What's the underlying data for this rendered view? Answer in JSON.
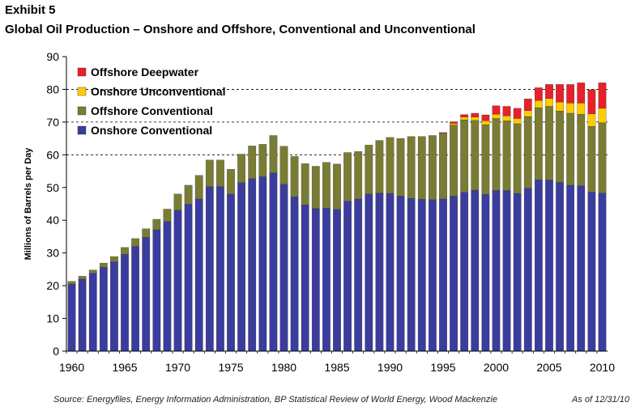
{
  "exhibit_label": "Exhibit 5",
  "title": "Global Oil Production – Onshore and Offshore, Conventional and Unconventional",
  "source": "Source:  Energyfiles, Energy Information Administration, BP Statistical Review of World Energy, Wood Mackenzie",
  "as_of": "As of 12/31/10",
  "colors": {
    "Onshore Conventional": "#3a3c9e",
    "Offshore Conventional": "#7a7c33",
    "Onshore Unconventional": "#ffcc00",
    "Offshore Deepwater": "#e8202a"
  },
  "chart_data": {
    "type": "bar",
    "stacked": true,
    "ylabel": "Millions of Barrels per Day",
    "xlabel": "",
    "ylim": [
      0,
      90
    ],
    "yticks": [
      0,
      10,
      20,
      30,
      40,
      50,
      60,
      70,
      80,
      90
    ],
    "xtick_labels": [
      "1960",
      "1965",
      "1970",
      "1975",
      "1980",
      "1985",
      "1990",
      "1995",
      "2000",
      "2005",
      "2010"
    ],
    "grid": "dashed horizontal at 60, 70, 80",
    "legend_position": "top-left",
    "legend_order": [
      "Offshore Deepwater",
      "Onshore Unconventional",
      "Offshore Conventional",
      "Onshore Conventional"
    ],
    "categories": [
      1960,
      1961,
      1962,
      1963,
      1964,
      1965,
      1966,
      1967,
      1968,
      1969,
      1970,
      1971,
      1972,
      1973,
      1974,
      1975,
      1976,
      1977,
      1978,
      1979,
      1980,
      1981,
      1982,
      1983,
      1984,
      1985,
      1986,
      1987,
      1988,
      1989,
      1990,
      1991,
      1992,
      1993,
      1994,
      1995,
      1996,
      1997,
      1998,
      1999,
      2000,
      2001,
      2002,
      2003,
      2004,
      2005,
      2006,
      2007,
      2008,
      2009,
      2010
    ],
    "series": [
      {
        "name": "Onshore Conventional",
        "values": [
          20.5,
          22.0,
          23.8,
          25.6,
          27.3,
          29.6,
          32.0,
          34.8,
          37.1,
          39.6,
          43.1,
          44.9,
          46.5,
          50.3,
          50.3,
          48.0,
          51.5,
          52.7,
          53.3,
          54.5,
          51.0,
          47.2,
          44.7,
          43.6,
          43.7,
          43.3,
          45.8,
          46.5,
          48.0,
          48.3,
          48.2,
          47.4,
          46.7,
          46.4,
          46.3,
          46.5,
          47.4,
          48.5,
          49.2,
          47.9,
          49.1,
          49.1,
          48.2,
          49.8,
          52.4,
          52.3,
          51.6,
          50.7,
          50.5,
          48.6,
          48.3
        ]
      },
      {
        "name": "Offshore Conventional",
        "values": [
          0.8,
          0.9,
          1.0,
          1.3,
          1.6,
          2.1,
          2.4,
          2.6,
          3.2,
          3.8,
          4.9,
          5.8,
          7.2,
          8.1,
          8.1,
          7.6,
          8.7,
          10.0,
          9.9,
          11.4,
          11.6,
          12.3,
          12.6,
          12.9,
          14.0,
          13.9,
          14.9,
          14.5,
          15.0,
          16.1,
          17.1,
          17.6,
          18.9,
          19.2,
          19.6,
          20.1,
          21.7,
          22.2,
          21.3,
          21.3,
          22.0,
          21.3,
          21.3,
          21.9,
          22.0,
          22.5,
          21.8,
          22.0,
          21.9,
          20.1,
          21.5
        ]
      },
      {
        "name": "Onshore Unconventional",
        "values": [
          0,
          0,
          0,
          0,
          0,
          0,
          0,
          0,
          0,
          0,
          0,
          0,
          0,
          0,
          0,
          0,
          0,
          0,
          0,
          0,
          0,
          0,
          0,
          0,
          0,
          0,
          0,
          0,
          0,
          0,
          0,
          0,
          0,
          0,
          0,
          0,
          0.5,
          0.8,
          1.0,
          1.2,
          1.3,
          1.5,
          1.6,
          1.8,
          2.2,
          2.4,
          2.7,
          3.1,
          3.4,
          3.8,
          4.4
        ]
      },
      {
        "name": "Offshore Deepwater",
        "values": [
          0,
          0,
          0,
          0,
          0,
          0,
          0,
          0,
          0,
          0,
          0,
          0,
          0,
          0,
          0,
          0,
          0,
          0,
          0,
          0,
          0,
          0,
          0,
          0,
          0,
          0,
          0,
          0,
          0,
          0,
          0,
          0,
          0,
          0,
          0,
          0.2,
          0.5,
          0.8,
          1.2,
          1.8,
          2.6,
          2.9,
          3.1,
          3.6,
          3.9,
          4.3,
          5.4,
          5.7,
          6.2,
          7.4,
          7.8
        ]
      }
    ]
  }
}
